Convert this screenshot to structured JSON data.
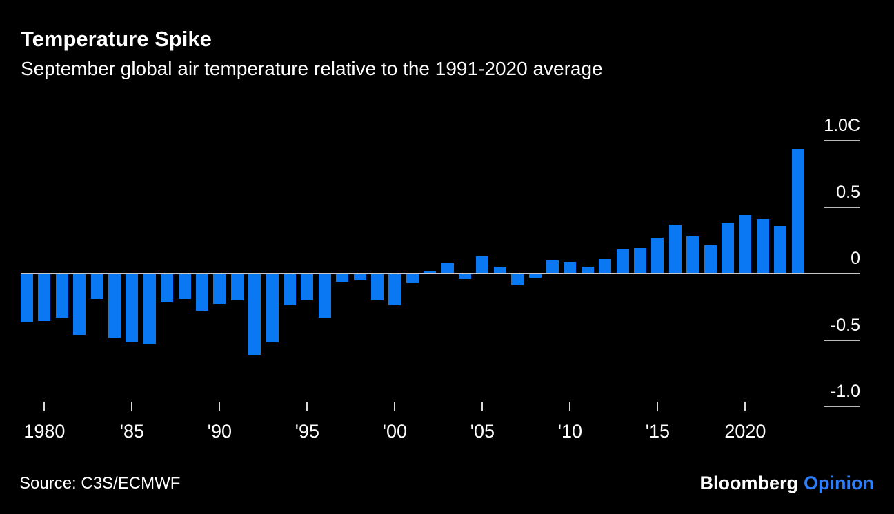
{
  "header": {
    "title": "Temperature Spike",
    "subtitle": "September global air temperature relative to the 1991-2020 average"
  },
  "chart_data": {
    "type": "bar",
    "title": "Temperature Spike",
    "subtitle": "September global air temperature relative to the 1991-2020 average",
    "series_name": "September global air temperature anomaly vs 1991-2020 average (C)",
    "unit": "C",
    "x": [
      1979,
      1980,
      1981,
      1982,
      1983,
      1984,
      1985,
      1986,
      1987,
      1988,
      1989,
      1990,
      1991,
      1992,
      1993,
      1994,
      1995,
      1996,
      1997,
      1998,
      1999,
      2000,
      2001,
      2002,
      2003,
      2004,
      2005,
      2006,
      2007,
      2008,
      2009,
      2010,
      2011,
      2012,
      2013,
      2014,
      2015,
      2016,
      2017,
      2018,
      2019,
      2020,
      2021,
      2022,
      2023
    ],
    "values": [
      -0.37,
      -0.36,
      -0.33,
      -0.46,
      -0.19,
      -0.48,
      -0.52,
      -0.53,
      -0.22,
      -0.19,
      -0.28,
      -0.23,
      -0.2,
      -0.61,
      -0.52,
      -0.24,
      -0.2,
      -0.33,
      -0.06,
      -0.05,
      -0.2,
      -0.24,
      -0.07,
      0.02,
      0.08,
      -0.04,
      0.13,
      0.05,
      -0.09,
      -0.03,
      0.1,
      0.09,
      0.05,
      0.11,
      0.18,
      0.19,
      0.27,
      0.37,
      0.28,
      0.21,
      0.38,
      0.44,
      0.41,
      0.36,
      0.94
    ],
    "ylim": [
      -1.0,
      1.0
    ],
    "baseline": 0,
    "grid": "short right-side tick segments, full-width zero line",
    "legend": "none",
    "bar_color": "#0a78f2",
    "axis_color": "#c9c9c9",
    "y_ticks": [
      {
        "label": "1.0C",
        "value": 1.0
      },
      {
        "label": "0.5",
        "value": 0.5
      },
      {
        "label": "0",
        "value": 0.0
      },
      {
        "label": "-0.5",
        "value": -0.5
      },
      {
        "label": "-1.0",
        "value": -1.0
      }
    ],
    "x_ticks": [
      {
        "label": "1980",
        "year": 1980
      },
      {
        "label": "'85",
        "year": 1985
      },
      {
        "label": "'90",
        "year": 1990
      },
      {
        "label": "'95",
        "year": 1995
      },
      {
        "label": "'00",
        "year": 2000
      },
      {
        "label": "'05",
        "year": 2005
      },
      {
        "label": "'10",
        "year": 2010
      },
      {
        "label": "'15",
        "year": 2015
      },
      {
        "label": "2020",
        "year": 2020
      }
    ]
  },
  "footer": {
    "source": "Source: C3S/ECMWF",
    "brand": "Bloomberg",
    "brand_suffix": "Opinion",
    "brand_suffix_color": "#2d7ff9"
  }
}
